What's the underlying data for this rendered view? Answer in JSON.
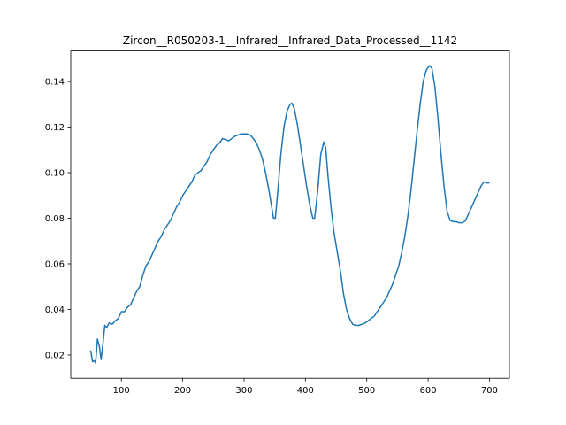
{
  "chart_data": {
    "type": "line",
    "title": "Zircon__R050203-1__Infrared__Infrared_Data_Processed__1142",
    "color": "#1f77b4",
    "x": [
      50,
      53,
      56,
      58,
      61,
      64,
      67,
      70,
      73,
      76,
      80,
      85,
      90,
      95,
      100,
      105,
      110,
      115,
      120,
      125,
      130,
      135,
      140,
      145,
      150,
      155,
      160,
      165,
      170,
      175,
      180,
      185,
      190,
      195,
      200,
      205,
      210,
      215,
      220,
      225,
      230,
      235,
      240,
      245,
      250,
      255,
      260,
      265,
      270,
      275,
      280,
      285,
      290,
      295,
      300,
      305,
      310,
      315,
      320,
      325,
      330,
      335,
      340,
      345,
      348,
      351,
      355,
      360,
      365,
      370,
      375,
      378,
      382,
      387,
      392,
      397,
      402,
      407,
      412,
      415,
      420,
      425,
      430,
      433,
      437,
      442,
      447,
      452,
      457,
      462,
      467,
      472,
      477,
      482,
      487,
      492,
      497,
      502,
      507,
      512,
      517,
      522,
      527,
      532,
      537,
      542,
      547,
      552,
      557,
      562,
      567,
      572,
      577,
      582,
      587,
      592,
      597,
      602,
      606,
      611,
      616,
      621,
      626,
      631,
      636,
      641,
      646,
      651,
      656,
      661,
      666,
      671,
      676,
      681,
      686,
      691,
      696,
      700
    ],
    "values": [
      0.022,
      0.017,
      0.0175,
      0.0165,
      0.027,
      0.024,
      0.018,
      0.025,
      0.033,
      0.032,
      0.034,
      0.0335,
      0.035,
      0.036,
      0.039,
      0.039,
      0.041,
      0.042,
      0.045,
      0.048,
      0.05,
      0.055,
      0.059,
      0.061,
      0.064,
      0.067,
      0.07,
      0.072,
      0.075,
      0.077,
      0.079,
      0.082,
      0.085,
      0.087,
      0.09,
      0.092,
      0.094,
      0.096,
      0.099,
      0.1,
      0.101,
      0.103,
      0.105,
      0.108,
      0.11,
      0.112,
      0.113,
      0.115,
      0.1145,
      0.114,
      0.115,
      0.116,
      0.1165,
      0.117,
      0.117,
      0.117,
      0.1165,
      0.115,
      0.113,
      0.11,
      0.106,
      0.1,
      0.093,
      0.085,
      0.08,
      0.08,
      0.092,
      0.108,
      0.12,
      0.127,
      0.13,
      0.1305,
      0.128,
      0.121,
      0.112,
      0.103,
      0.094,
      0.086,
      0.08,
      0.08,
      0.092,
      0.108,
      0.1135,
      0.111,
      0.098,
      0.084,
      0.073,
      0.065,
      0.057,
      0.047,
      0.04,
      0.036,
      0.0335,
      0.033,
      0.033,
      0.0335,
      0.034,
      0.035,
      0.036,
      0.037,
      0.039,
      0.041,
      0.043,
      0.045,
      0.048,
      0.051,
      0.055,
      0.059,
      0.065,
      0.072,
      0.081,
      0.092,
      0.105,
      0.118,
      0.13,
      0.14,
      0.145,
      0.147,
      0.146,
      0.138,
      0.124,
      0.108,
      0.094,
      0.083,
      0.079,
      0.0785,
      0.0785,
      0.078,
      0.078,
      0.079,
      0.082,
      0.085,
      0.088,
      0.091,
      0.094,
      0.096,
      0.0955,
      0.0955
    ],
    "xlim": [
      17.5,
      732.5
    ],
    "ylim": [
      0.0098,
      0.1534
    ],
    "xticks": [
      100,
      200,
      300,
      400,
      500,
      600,
      700
    ],
    "yticks": [
      0.02,
      0.04,
      0.06,
      0.08,
      {
        "value": 0.1,
        "label": "0.10"
      },
      0.12,
      0.14
    ]
  }
}
